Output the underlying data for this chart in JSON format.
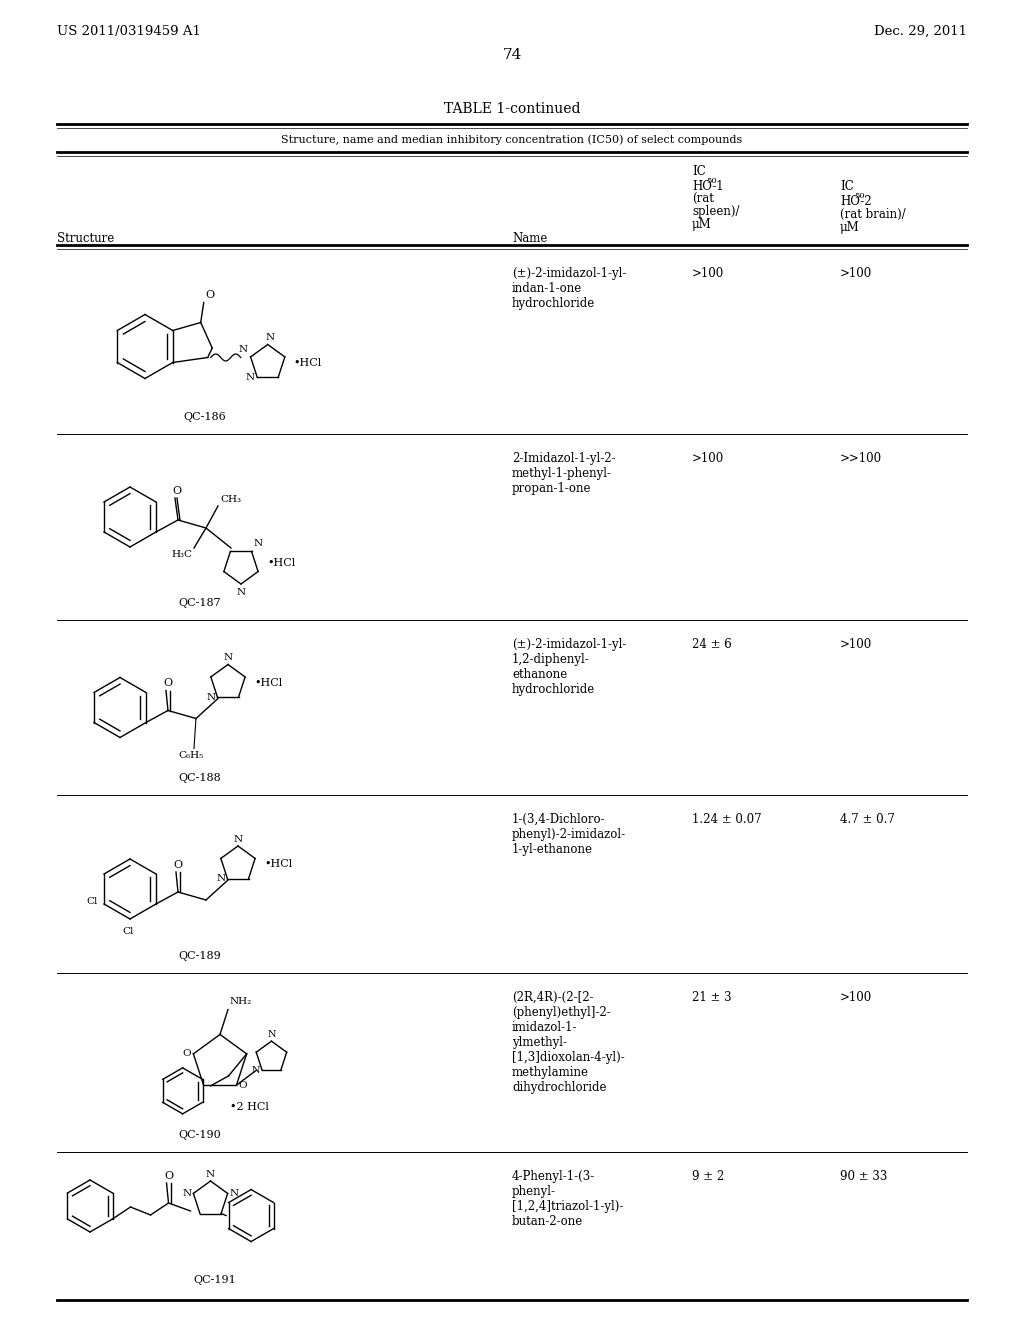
{
  "page_number": "74",
  "patent_number": "US 2011/0319459 A1",
  "patent_date": "Dec. 29, 2011",
  "table_title": "TABLE 1-continued",
  "table_subtitle": "Structure, name and median inhibitory concentration (IC50) of select compounds",
  "compounds": [
    {
      "id": "QC-186",
      "name": "(±)-2-imidazol-1-yl-\nindan-1-one\nhydrochloride",
      "ho1": ">100",
      "ho2": ">100"
    },
    {
      "id": "QC-187",
      "name": "2-Imidazol-1-yl-2-\nmethyl-1-phenyl-\npropan-1-one",
      "ho1": ">100",
      "ho2": ">>100"
    },
    {
      "id": "QC-188",
      "name": "(±)-2-imidazol-1-yl-\n1,2-diphenyl-\nethanone\nhydrochloride",
      "ho1": "24 ± 6",
      "ho2": ">100"
    },
    {
      "id": "QC-189",
      "name": "1-(3,4-Dichloro-\nphenyl)-2-imidazol-\n1-yl-ethanone",
      "ho1": "1.24 ± 0.07",
      "ho2": "4.7 ± 0.7"
    },
    {
      "id": "QC-190",
      "name": "(2R,4R)-(2-[2-\n(phenyl)ethyl]-2-\nimidazol-1-\nylmethyl-\n[1,3]dioxolan-4-yl)-\nmethylamine\ndihydrochloride",
      "ho1": "21 ± 3",
      "ho2": ">100"
    },
    {
      "id": "QC-191",
      "name": "4-Phenyl-1-(3-\nphenyl-\n[1,2,4]triazol-1-yl)-\nbutan-2-one",
      "ho1": "9 ± 2",
      "ho2": "90 ± 33"
    }
  ],
  "bg_color": "#ffffff"
}
